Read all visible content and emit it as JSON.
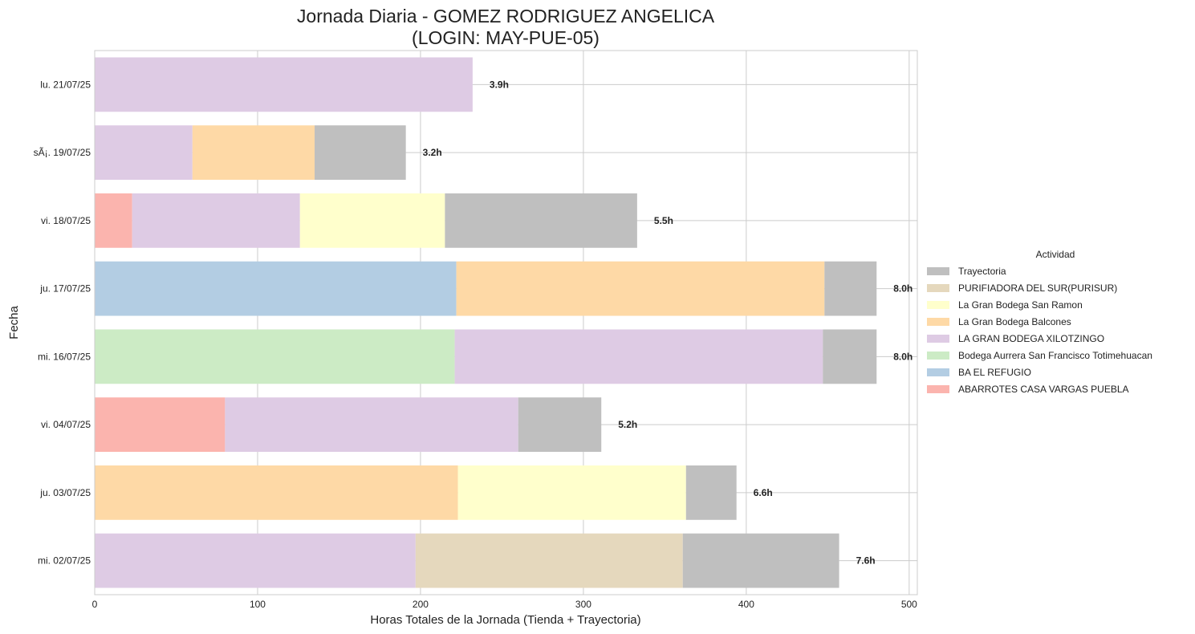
{
  "chart_data": {
    "type": "bar",
    "orientation": "horizontal",
    "stacked": true,
    "title": [
      "Jornada Diaria - GOMEZ RODRIGUEZ ANGELICA",
      "(LOGIN: MAY-PUE-05)"
    ],
    "xlabel": "Horas Totales de la Jornada (Tienda + Trayectoria)",
    "ylabel": "Fecha",
    "xlim": [
      0,
      505
    ],
    "xticks": [
      0,
      100,
      200,
      300,
      400,
      500
    ],
    "grid": true,
    "legend": {
      "title": "Actividad",
      "placement": "center-right outside",
      "entries": [
        {
          "name": "Trayectoria",
          "color": "#bfbfbf"
        },
        {
          "name": "PURIFIADORA DEL SUR(PURISUR)",
          "color": "#e5d8bd"
        },
        {
          "name": "La Gran Bodega San Ramon",
          "color": "#ffffcc"
        },
        {
          "name": "La Gran Bodega Balcones",
          "color": "#fed9a6"
        },
        {
          "name": "LA GRAN BODEGA XILOTZINGO",
          "color": "#decbe4"
        },
        {
          "name": "Bodega Aurrera San Francisco Totimehuacan",
          "color": "#ccebc5"
        },
        {
          "name": "BA EL REFUGIO",
          "color": "#b3cde3"
        },
        {
          "name": "ABARROTES CASA VARGAS PUEBLA",
          "color": "#fbb4ae"
        }
      ]
    },
    "categories": [
      {
        "label": "lu. 21/07/25",
        "total_label": "3.9h",
        "segments": [
          {
            "activity": "LA GRAN BODEGA XILOTZINGO",
            "value": 232
          }
        ]
      },
      {
        "label": "sÃ¡. 19/07/25",
        "total_label": "3.2h",
        "segments": [
          {
            "activity": "LA GRAN BODEGA XILOTZINGO",
            "value": 60
          },
          {
            "activity": "La Gran Bodega Balcones",
            "value": 75
          },
          {
            "activity": "Trayectoria",
            "value": 56
          }
        ]
      },
      {
        "label": "vi. 18/07/25",
        "total_label": "5.5h",
        "segments": [
          {
            "activity": "ABARROTES CASA VARGAS PUEBLA",
            "value": 23
          },
          {
            "activity": "LA GRAN BODEGA XILOTZINGO",
            "value": 103
          },
          {
            "activity": "La Gran Bodega San Ramon",
            "value": 89
          },
          {
            "activity": "Trayectoria",
            "value": 118
          }
        ]
      },
      {
        "label": "ju. 17/07/25",
        "total_label": "8.0h",
        "segments": [
          {
            "activity": "BA EL REFUGIO",
            "value": 222
          },
          {
            "activity": "La Gran Bodega Balcones",
            "value": 226
          },
          {
            "activity": "Trayectoria",
            "value": 32
          }
        ]
      },
      {
        "label": "mi. 16/07/25",
        "total_label": "8.0h",
        "segments": [
          {
            "activity": "Bodega Aurrera San Francisco Totimehuacan",
            "value": 221
          },
          {
            "activity": "LA GRAN BODEGA XILOTZINGO",
            "value": 226
          },
          {
            "activity": "Trayectoria",
            "value": 33
          }
        ]
      },
      {
        "label": "vi. 04/07/25",
        "total_label": "5.2h",
        "segments": [
          {
            "activity": "ABARROTES CASA VARGAS PUEBLA",
            "value": 80
          },
          {
            "activity": "LA GRAN BODEGA XILOTZINGO",
            "value": 180
          },
          {
            "activity": "Trayectoria",
            "value": 51
          }
        ]
      },
      {
        "label": "ju. 03/07/25",
        "total_label": "6.6h",
        "segments": [
          {
            "activity": "La Gran Bodega Balcones",
            "value": 223
          },
          {
            "activity": "La Gran Bodega San Ramon",
            "value": 140
          },
          {
            "activity": "Trayectoria",
            "value": 31
          }
        ]
      },
      {
        "label": "mi. 02/07/25",
        "total_label": "7.6h",
        "segments": [
          {
            "activity": "LA GRAN BODEGA XILOTZINGO",
            "value": 197
          },
          {
            "activity": "PURIFIADORA DEL SUR(PURISUR)",
            "value": 164
          },
          {
            "activity": "Trayectoria",
            "value": 96
          }
        ]
      }
    ]
  }
}
